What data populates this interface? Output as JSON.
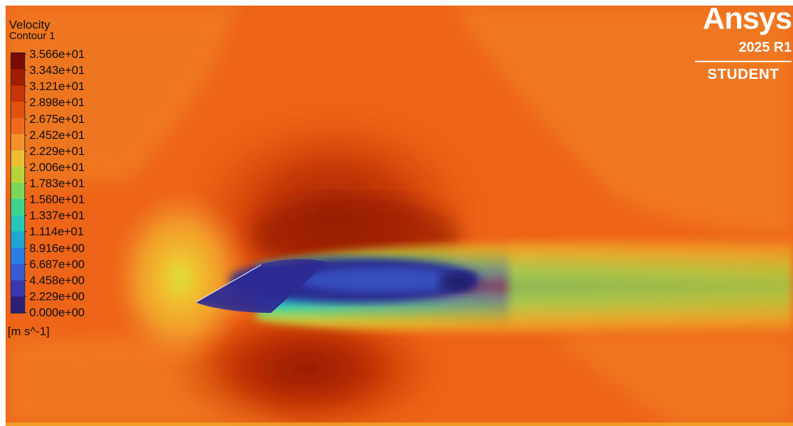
{
  "legend": {
    "title": "Velocity",
    "subtitle": "Contour 1",
    "units": "[m s^-1]",
    "ticks": [
      "3.566e+01",
      "3.343e+01",
      "3.121e+01",
      "2.898e+01",
      "2.675e+01",
      "2.452e+01",
      "2.229e+01",
      "2.006e+01",
      "1.783e+01",
      "1.560e+01",
      "1.337e+01",
      "1.114e+01",
      "8.916e+00",
      "6.687e+00",
      "4.458e+00",
      "2.229e+00",
      "0.000e+00"
    ],
    "colormap": [
      "#7b0a00",
      "#a11d00",
      "#c93308",
      "#e2510e",
      "#ef6a1e",
      "#f3922a",
      "#ebbf2f",
      "#b8d43a",
      "#7ad75a",
      "#3fd48c",
      "#26c7b6",
      "#1fa6d3",
      "#2a7ee6",
      "#3b5ad6",
      "#3a38b0",
      "#2c1f7a"
    ]
  },
  "watermark": {
    "brand": "Ansys",
    "version": "2025 R1",
    "edition": "STUDENT"
  },
  "colors": {
    "freestream": "#ee6418",
    "accelerated": "#c4340a",
    "wake_core": "#2a2790",
    "wake_outer": "#e9f04a"
  }
}
